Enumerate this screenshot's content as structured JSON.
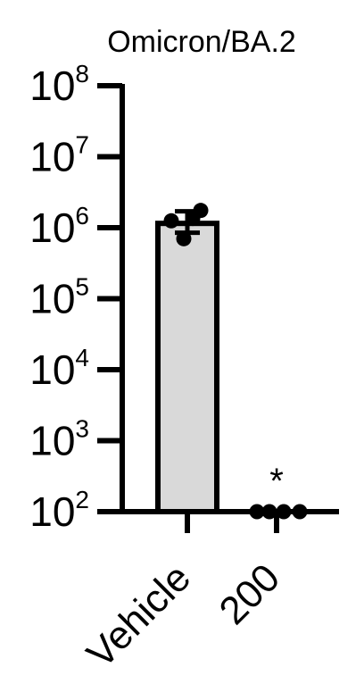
{
  "chart_data": {
    "type": "bar",
    "title": "Omicron/BA.2",
    "xlabel": "",
    "ylabel": "",
    "yscale": "log",
    "ylim": [
      100,
      100000000
    ],
    "y_ticks": [
      {
        "base": "10",
        "exp": "2",
        "value": 100
      },
      {
        "base": "10",
        "exp": "3",
        "value": 1000
      },
      {
        "base": "10",
        "exp": "4",
        "value": 10000
      },
      {
        "base": "10",
        "exp": "5",
        "value": 100000
      },
      {
        "base": "10",
        "exp": "6",
        "value": 1000000
      },
      {
        "base": "10",
        "exp": "7",
        "value": 10000000
      },
      {
        "base": "10",
        "exp": "8",
        "value": 100000000
      }
    ],
    "categories": [
      "Vehicle",
      "200"
    ],
    "values": [
      1150000,
      100
    ],
    "error": [
      [
        850000,
        1700000
      ],
      null
    ],
    "points": [
      [
        1750000,
        1350000,
        1250000,
        700000
      ],
      [
        100,
        100,
        100,
        100
      ]
    ],
    "annotations": [
      {
        "category": "200",
        "text": "*"
      }
    ],
    "colors": {
      "bar_fill": "#d9d9d9",
      "stroke": "#000000"
    },
    "grid": false,
    "legend": "none"
  }
}
